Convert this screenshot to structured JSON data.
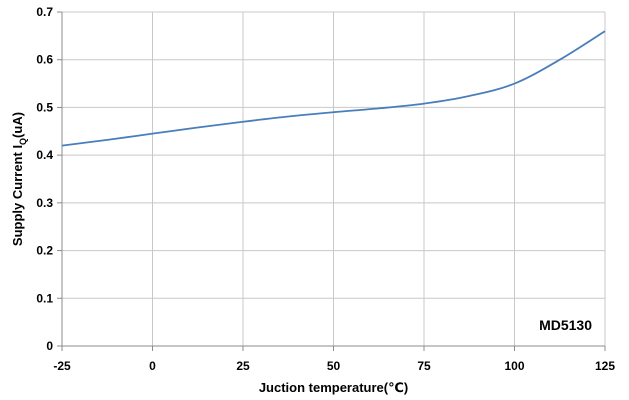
{
  "chart_data": {
    "type": "line",
    "title": "",
    "xlabel": "Juction temperature(℃)",
    "ylabel": "Supply Current IQ(uA)",
    "ylabel_main": "Supply  Current I",
    "ylabel_sub": "Q",
    "ylabel_tail": "(uA)",
    "xlim": [
      -25,
      125
    ],
    "ylim": [
      0,
      0.7
    ],
    "x_ticks": [
      "-25",
      "0",
      "25",
      "50",
      "75",
      "100",
      "125"
    ],
    "y_ticks": [
      "0",
      "0.1",
      "0.2",
      "0.3",
      "0.4",
      "0.5",
      "0.6",
      "0.7"
    ],
    "grid": true,
    "annotation": "MD5130",
    "series": [
      {
        "color": "#4a7ebb",
        "x": [
          -25,
          -12.5,
          0,
          12.5,
          25,
          37.5,
          50,
          62.5,
          75,
          87.5,
          100,
          112.5,
          125
        ],
        "y": [
          0.42,
          0.432,
          0.445,
          0.458,
          0.47,
          0.481,
          0.49,
          0.498,
          0.508,
          0.524,
          0.55,
          0.6,
          0.66
        ]
      }
    ]
  }
}
